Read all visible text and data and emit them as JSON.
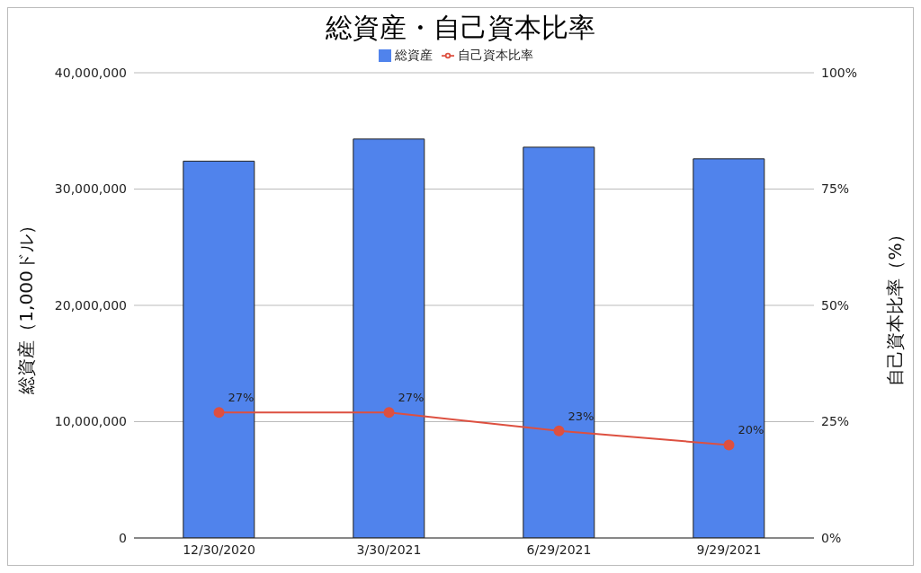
{
  "chart_data": {
    "type": "bar",
    "title": "総資産・自己資本比率",
    "categories": [
      "12/30/2020",
      "3/30/2021",
      "6/29/2021",
      "9/29/2021"
    ],
    "series": [
      {
        "name": "総資産",
        "color": "#5083ec",
        "values": [
          32400000,
          34300000,
          33600000,
          32600000
        ]
      },
      {
        "name": "自己資本比率",
        "type": "line",
        "axis": "y2",
        "color": "#dd5040",
        "values": [
          27,
          27,
          23,
          20
        ],
        "value_labels": [
          "27%",
          "27%",
          "23%",
          "20%"
        ]
      }
    ],
    "ylabel": "総資産（1,000ドル）",
    "y2label": "自己資本比率（%）",
    "ylim": [
      0,
      40000000
    ],
    "yticks": [
      {
        "value": 0,
        "label": "0"
      },
      {
        "value": 10000000,
        "label": "10,000,000"
      },
      {
        "value": 20000000,
        "label": "20,000,000"
      },
      {
        "value": 30000000,
        "label": "30,000,000"
      },
      {
        "value": 40000000,
        "label": "40,000,000"
      }
    ],
    "y2lim": [
      0,
      100
    ],
    "y2ticks": [
      {
        "value": 0,
        "label": "0%"
      },
      {
        "value": 25,
        "label": "25%"
      },
      {
        "value": 50,
        "label": "50%"
      },
      {
        "value": 75,
        "label": "75%"
      },
      {
        "value": 100,
        "label": "100%"
      }
    ],
    "grid": "y",
    "legend": "top",
    "marker": "circle",
    "line_style": "solid"
  }
}
